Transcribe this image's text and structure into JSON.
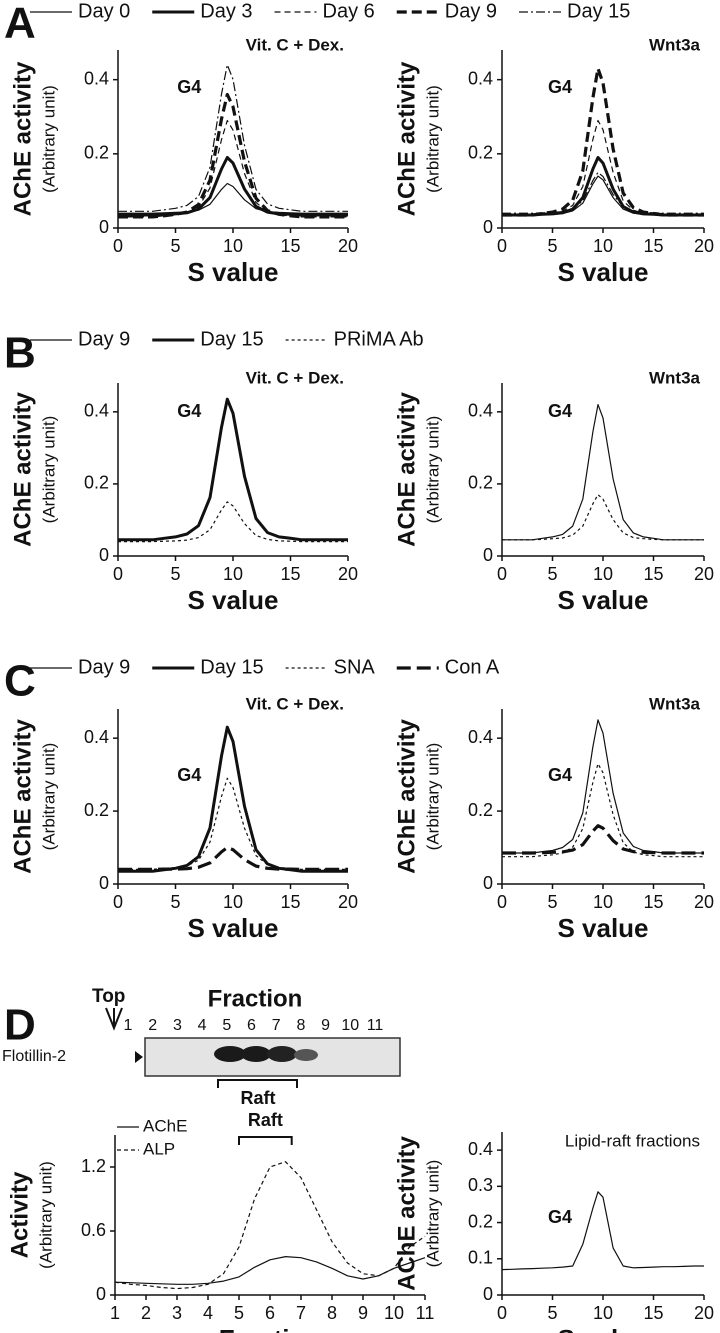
{
  "panels": [
    "A",
    "B",
    "C",
    "D"
  ],
  "blot": {
    "title": "Fraction",
    "top_label": "Top",
    "lanes": [
      "1",
      "2",
      "3",
      "4",
      "5",
      "6",
      "7",
      "8",
      "9",
      "10",
      "11"
    ],
    "band_label": "Flotillin-2",
    "bracket_label": "Raft"
  },
  "chart_data": [
    {
      "type": "line",
      "title": "Vit. C + Dex.",
      "annotation": "G4",
      "ylabel": "AChE activity",
      "ylabel_note": "(Arbitrary unit)",
      "xlabel": "S value",
      "color": "#111111",
      "legend": [
        {
          "name": "Day 0",
          "dash": "none",
          "width": 1.2
        },
        {
          "name": "Day 3",
          "dash": "none",
          "width": 3
        },
        {
          "name": "Day 6",
          "dash": "6,4",
          "width": 1.2
        },
        {
          "name": "Day 9",
          "dash": "10,5",
          "width": 3.2
        },
        {
          "name": "Day 15",
          "dash": "9,3,2,3",
          "width": 1.2
        }
      ],
      "x": [
        0,
        1,
        2,
        3,
        4,
        5,
        6,
        7,
        8,
        9,
        9.5,
        10,
        11,
        12,
        13,
        14,
        15,
        16,
        17,
        18,
        19,
        20
      ],
      "series": [
        {
          "dash": "none",
          "width": 1.2,
          "values": [
            0.04,
            0.04,
            0.04,
            0.04,
            0.041,
            0.042,
            0.043,
            0.048,
            0.064,
            0.104,
            0.12,
            0.112,
            0.076,
            0.052,
            0.044,
            0.042,
            0.041,
            0.04,
            0.04,
            0.04,
            0.04,
            0.04
          ]
        },
        {
          "dash": "none",
          "width": 3,
          "values": [
            0.035,
            0.035,
            0.035,
            0.035,
            0.037,
            0.038,
            0.041,
            0.051,
            0.082,
            0.159,
            0.19,
            0.175,
            0.105,
            0.058,
            0.043,
            0.038,
            0.037,
            0.035,
            0.035,
            0.035,
            0.035,
            0.035
          ]
        },
        {
          "dash": "6,4",
          "width": 1.2,
          "values": [
            0.03,
            0.03,
            0.03,
            0.03,
            0.033,
            0.035,
            0.04,
            0.056,
            0.108,
            0.238,
            0.29,
            0.264,
            0.147,
            0.069,
            0.043,
            0.035,
            0.033,
            0.03,
            0.03,
            0.03,
            0.03,
            0.03
          ]
        },
        {
          "dash": "10,5",
          "width": 3.2,
          "values": [
            0.03,
            0.03,
            0.03,
            0.03,
            0.033,
            0.037,
            0.043,
            0.063,
            0.129,
            0.294,
            0.36,
            0.327,
            0.179,
            0.08,
            0.047,
            0.037,
            0.033,
            0.03,
            0.03,
            0.03,
            0.03,
            0.03
          ]
        },
        {
          "dash": "9,3,2,3",
          "width": 1.2,
          "values": [
            0.045,
            0.045,
            0.045,
            0.045,
            0.049,
            0.053,
            0.061,
            0.085,
            0.164,
            0.361,
            0.44,
            0.401,
            0.223,
            0.104,
            0.065,
            0.053,
            0.049,
            0.045,
            0.045,
            0.045,
            0.045,
            0.045
          ]
        }
      ],
      "xlim": [
        0,
        20
      ],
      "xticks": [
        0,
        5,
        10,
        15,
        20
      ],
      "ylim": [
        0,
        0.48
      ],
      "yticks": [
        0,
        0.2,
        0.4
      ]
    },
    {
      "type": "line",
      "title": "Wnt3a",
      "annotation": "G4",
      "ylabel": "AChE activity",
      "ylabel_note": "(Arbitrary unit)",
      "xlabel": "S value",
      "color": "#111111",
      "x": [
        0,
        1,
        2,
        3,
        4,
        5,
        6,
        7,
        8,
        9,
        9.5,
        10,
        11,
        12,
        13,
        14,
        15,
        16,
        17,
        18,
        19,
        20
      ],
      "series": [
        {
          "dash": "none",
          "width": 1.2,
          "values": [
            0.035,
            0.035,
            0.035,
            0.035,
            0.036,
            0.037,
            0.039,
            0.046,
            0.067,
            0.119,
            0.14,
            0.13,
            0.082,
            0.051,
            0.04,
            0.037,
            0.036,
            0.035,
            0.035,
            0.035,
            0.035,
            0.035
          ]
        },
        {
          "dash": "none",
          "width": 3,
          "values": [
            0.035,
            0.035,
            0.035,
            0.035,
            0.037,
            0.038,
            0.041,
            0.051,
            0.082,
            0.159,
            0.19,
            0.175,
            0.105,
            0.058,
            0.043,
            0.038,
            0.037,
            0.035,
            0.035,
            0.035,
            0.035,
            0.035
          ]
        },
        {
          "dash": "6,4",
          "width": 1.2,
          "values": [
            0.035,
            0.035,
            0.035,
            0.035,
            0.038,
            0.04,
            0.045,
            0.061,
            0.112,
            0.239,
            0.29,
            0.265,
            0.15,
            0.073,
            0.048,
            0.04,
            0.038,
            0.035,
            0.035,
            0.035,
            0.035,
            0.035
          ]
        },
        {
          "dash": "10,5",
          "width": 3.2,
          "values": [
            0.035,
            0.035,
            0.035,
            0.035,
            0.039,
            0.043,
            0.051,
            0.075,
            0.154,
            0.351,
            0.43,
            0.391,
            0.213,
            0.094,
            0.055,
            0.043,
            0.039,
            0.035,
            0.035,
            0.035,
            0.035,
            0.035
          ]
        },
        {
          "dash": "9,3,2,3",
          "width": 1.2,
          "values": [
            0.04,
            0.04,
            0.04,
            0.04,
            0.041,
            0.042,
            0.044,
            0.051,
            0.073,
            0.128,
            0.15,
            0.139,
            0.09,
            0.057,
            0.046,
            0.042,
            0.041,
            0.04,
            0.04,
            0.04,
            0.04,
            0.04
          ]
        }
      ],
      "xlim": [
        0,
        20
      ],
      "xticks": [
        0,
        5,
        10,
        15,
        20
      ],
      "ylim": [
        0,
        0.48
      ],
      "yticks": [
        0,
        0.2,
        0.4
      ]
    },
    {
      "type": "line",
      "title": "Vit. C + Dex.",
      "annotation": "G4",
      "ylabel": "AChE activity",
      "ylabel_note": "(Arbitrary unit)",
      "xlabel": "S value",
      "color": "#111111",
      "legend": [
        {
          "name": "Day 9",
          "dash": "none",
          "width": 1.2
        },
        {
          "name": "Day 15",
          "dash": "none",
          "width": 3
        },
        {
          "name": "PRiMA Ab",
          "dash": "3,3",
          "width": 1.2
        }
      ],
      "x": [
        0,
        1,
        2,
        3,
        4,
        5,
        6,
        7,
        8,
        9,
        9.5,
        10,
        11,
        12,
        13,
        14,
        15,
        16,
        17,
        18,
        19,
        20
      ],
      "series": [
        {
          "dash": "none",
          "width": 3,
          "values": [
            0.045,
            0.045,
            0.045,
            0.045,
            0.049,
            0.053,
            0.061,
            0.084,
            0.162,
            0.357,
            0.435,
            0.396,
            0.221,
            0.104,
            0.065,
            0.053,
            0.049,
            0.045,
            0.045,
            0.045,
            0.045,
            0.045
          ]
        },
        {
          "dash": "3,3",
          "width": 1.2,
          "values": [
            0.04,
            0.04,
            0.04,
            0.04,
            0.041,
            0.042,
            0.044,
            0.051,
            0.073,
            0.128,
            0.15,
            0.139,
            0.09,
            0.057,
            0.046,
            0.042,
            0.041,
            0.04,
            0.04,
            0.04,
            0.04,
            0.04
          ]
        }
      ],
      "xlim": [
        0,
        20
      ],
      "xticks": [
        0,
        5,
        10,
        15,
        20
      ],
      "ylim": [
        0,
        0.48
      ],
      "yticks": [
        0,
        0.2,
        0.4
      ]
    },
    {
      "type": "line",
      "title": "Wnt3a",
      "annotation": "G4",
      "ylabel": "AChE activity",
      "ylabel_note": "(Arbitrary unit)",
      "xlabel": "S value",
      "color": "#111111",
      "x": [
        0,
        1,
        2,
        3,
        4,
        5,
        6,
        7,
        8,
        9,
        9.5,
        10,
        11,
        12,
        13,
        14,
        15,
        16,
        17,
        18,
        19,
        20
      ],
      "series": [
        {
          "dash": "none",
          "width": 1.2,
          "values": [
            0.045,
            0.045,
            0.045,
            0.045,
            0.049,
            0.053,
            0.06,
            0.083,
            0.158,
            0.345,
            0.42,
            0.383,
            0.214,
            0.101,
            0.064,
            0.053,
            0.049,
            0.045,
            0.045,
            0.045,
            0.045,
            0.045
          ]
        },
        {
          "dash": "3,3",
          "width": 1.2,
          "values": [
            0.045,
            0.045,
            0.045,
            0.045,
            0.046,
            0.048,
            0.05,
            0.058,
            0.083,
            0.145,
            0.17,
            0.158,
            0.101,
            0.064,
            0.051,
            0.048,
            0.046,
            0.045,
            0.045,
            0.045,
            0.045,
            0.045
          ]
        }
      ],
      "xlim": [
        0,
        20
      ],
      "xticks": [
        0,
        5,
        10,
        15,
        20
      ],
      "ylim": [
        0,
        0.48
      ],
      "yticks": [
        0,
        0.2,
        0.4
      ]
    },
    {
      "type": "line",
      "title": "Vit. C + Dex.",
      "annotation": "G4",
      "ylabel": "AChE activity",
      "ylabel_note": "(Arbitrary unit)",
      "xlabel": "S value",
      "color": "#111111",
      "legend": [
        {
          "name": "Day 9",
          "dash": "none",
          "width": 1.2
        },
        {
          "name": "Day 15",
          "dash": "none",
          "width": 3
        },
        {
          "name": "SNA",
          "dash": "3,3",
          "width": 1.2
        },
        {
          "name": "Con A",
          "dash": "14,6",
          "width": 3.2
        }
      ],
      "x": [
        0,
        1,
        2,
        3,
        4,
        5,
        6,
        7,
        8,
        9,
        9.5,
        10,
        11,
        12,
        13,
        14,
        15,
        16,
        17,
        18,
        19,
        20
      ],
      "series": [
        {
          "dash": "none",
          "width": 3,
          "values": [
            0.035,
            0.035,
            0.035,
            0.035,
            0.039,
            0.043,
            0.051,
            0.075,
            0.154,
            0.351,
            0.43,
            0.391,
            0.213,
            0.094,
            0.055,
            0.043,
            0.039,
            0.035,
            0.035,
            0.035,
            0.035,
            0.035
          ]
        },
        {
          "dash": "3,3",
          "width": 1.2,
          "values": [
            0.04,
            0.04,
            0.04,
            0.04,
            0.043,
            0.045,
            0.05,
            0.065,
            0.115,
            0.24,
            0.29,
            0.265,
            0.153,
            0.078,
            0.053,
            0.045,
            0.043,
            0.04,
            0.04,
            0.04,
            0.04,
            0.04
          ]
        },
        {
          "dash": "14,6",
          "width": 3.2,
          "values": [
            0.04,
            0.04,
            0.04,
            0.04,
            0.041,
            0.041,
            0.042,
            0.046,
            0.058,
            0.088,
            0.1,
            0.094,
            0.067,
            0.049,
            0.043,
            0.041,
            0.041,
            0.04,
            0.04,
            0.04,
            0.04,
            0.04
          ]
        }
      ],
      "xlim": [
        0,
        20
      ],
      "xticks": [
        0,
        5,
        10,
        15,
        20
      ],
      "ylim": [
        0,
        0.48
      ],
      "yticks": [
        0,
        0.2,
        0.4
      ]
    },
    {
      "type": "line",
      "title": "Wnt3a",
      "annotation": "G4",
      "ylabel": "AChE activity",
      "ylabel_note": "(Arbitrary unit)",
      "xlabel": "S value",
      "color": "#111111",
      "x": [
        0,
        1,
        2,
        3,
        4,
        5,
        6,
        7,
        8,
        9,
        9.5,
        10,
        11,
        12,
        13,
        14,
        15,
        16,
        17,
        18,
        19,
        20
      ],
      "series": [
        {
          "dash": "none",
          "width": 1.2,
          "values": [
            0.085,
            0.085,
            0.085,
            0.085,
            0.089,
            0.092,
            0.1,
            0.122,
            0.195,
            0.377,
            0.45,
            0.414,
            0.249,
            0.14,
            0.103,
            0.092,
            0.089,
            0.085,
            0.085,
            0.085,
            0.085,
            0.085
          ]
        },
        {
          "dash": "3,3",
          "width": 1.2,
          "values": [
            0.075,
            0.075,
            0.075,
            0.075,
            0.078,
            0.08,
            0.085,
            0.101,
            0.152,
            0.279,
            0.33,
            0.305,
            0.19,
            0.113,
            0.088,
            0.08,
            0.078,
            0.075,
            0.075,
            0.075,
            0.075,
            0.075
          ]
        },
        {
          "dash": "14,6",
          "width": 3.2,
          "values": [
            0.085,
            0.085,
            0.085,
            0.085,
            0.086,
            0.087,
            0.088,
            0.093,
            0.108,
            0.145,
            0.16,
            0.153,
            0.119,
            0.096,
            0.089,
            0.087,
            0.086,
            0.085,
            0.085,
            0.085,
            0.085,
            0.085
          ]
        }
      ],
      "xlim": [
        0,
        20
      ],
      "xticks": [
        0,
        5,
        10,
        15,
        20
      ],
      "ylim": [
        0,
        0.48
      ],
      "yticks": [
        0,
        0.2,
        0.4
      ]
    },
    {
      "type": "line",
      "annotation": "Raft",
      "ylabel": "Activity",
      "ylabel_note": "(Arbitrary unit)",
      "xlabel": "Fraction",
      "color": "#111111",
      "legend": [
        {
          "name": "AChE",
          "dash": "none",
          "width": 1.2
        },
        {
          "name": "ALP",
          "dash": "4,3",
          "width": 1.2
        }
      ],
      "x": [
        1,
        1.5,
        2,
        2.5,
        3,
        3.5,
        4,
        4.5,
        5,
        5.5,
        6,
        6.5,
        7,
        7.5,
        8,
        8.5,
        9,
        9.5,
        10,
        10.5,
        11
      ],
      "series": [
        {
          "dash": "none",
          "width": 1.2,
          "values": [
            0.12,
            0.115,
            0.11,
            0.105,
            0.1,
            0.1,
            0.11,
            0.13,
            0.17,
            0.26,
            0.33,
            0.36,
            0.35,
            0.31,
            0.25,
            0.18,
            0.15,
            0.18,
            0.25,
            0.3,
            0.35
          ]
        },
        {
          "dash": "4,3",
          "width": 1.2,
          "values": [
            0.12,
            0.1,
            0.09,
            0.07,
            0.06,
            0.07,
            0.1,
            0.2,
            0.45,
            0.9,
            1.2,
            1.25,
            1.1,
            0.8,
            0.5,
            0.3,
            0.2,
            0.18,
            0.25,
            0.45,
            0.55
          ]
        }
      ],
      "xlim": [
        1,
        11
      ],
      "xticks": [
        1,
        2,
        3,
        4,
        5,
        6,
        7,
        8,
        9,
        10,
        11
      ],
      "ylim": [
        0,
        1.5
      ],
      "yticks": [
        0,
        0.6,
        1.2
      ]
    },
    {
      "type": "line",
      "title": "Lipid-raft fractions",
      "annotation": "G4",
      "ylabel": "AChE activity",
      "ylabel_note": "(Arbitrary unit)",
      "xlabel": "S value",
      "color": "#111111",
      "x": [
        0,
        1,
        2,
        3,
        4,
        5,
        6,
        7,
        8,
        9,
        9.5,
        10,
        11,
        12,
        13,
        14,
        15,
        16,
        17,
        18,
        19,
        20
      ],
      "series": [
        {
          "dash": "none",
          "width": 1.2,
          "values": [
            0.07,
            0.071,
            0.072,
            0.073,
            0.074,
            0.075,
            0.077,
            0.08,
            0.14,
            0.24,
            0.285,
            0.27,
            0.13,
            0.08,
            0.075,
            0.076,
            0.077,
            0.078,
            0.078,
            0.079,
            0.08,
            0.08
          ]
        }
      ],
      "xlim": [
        0,
        20
      ],
      "xticks": [
        0,
        5,
        10,
        15,
        20
      ],
      "ylim": [
        0,
        0.45
      ],
      "yticks": [
        0,
        0.1,
        0.2,
        0.3,
        0.4
      ]
    }
  ]
}
